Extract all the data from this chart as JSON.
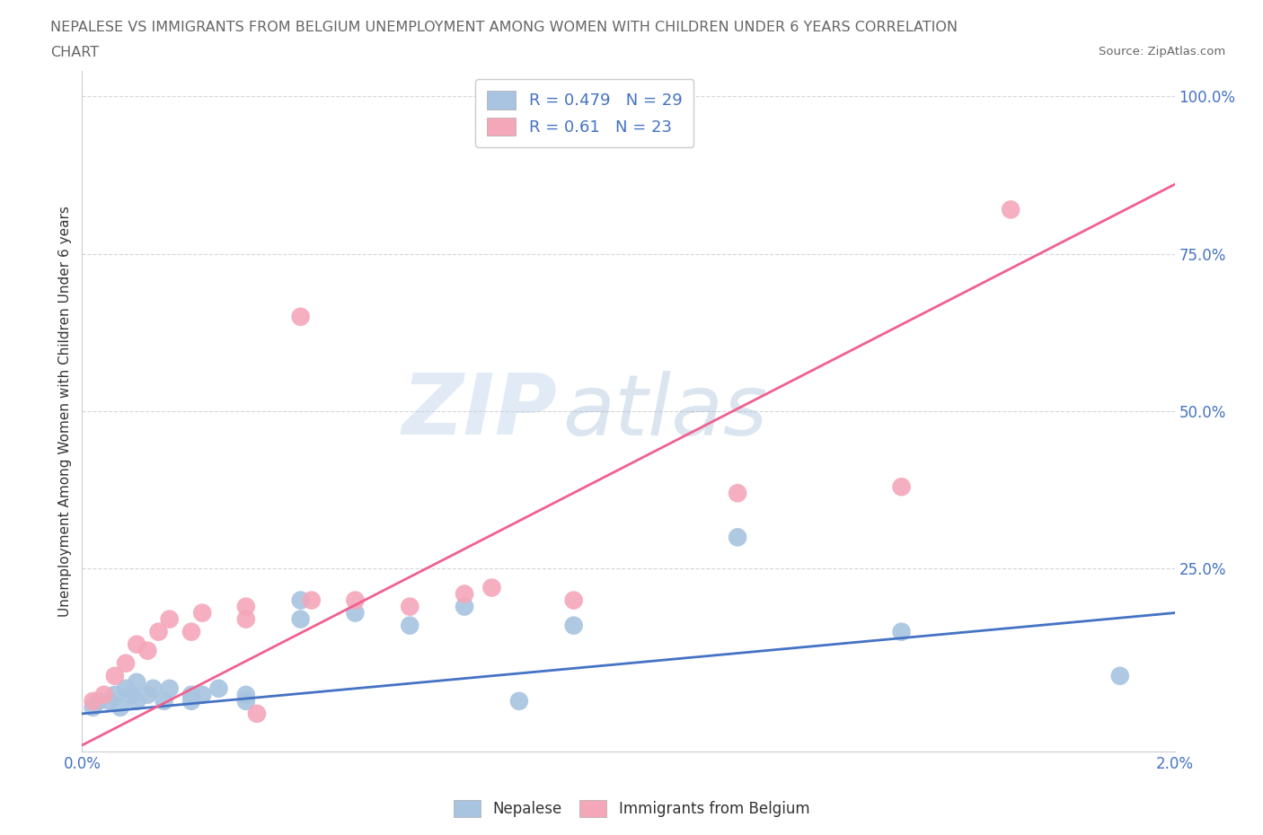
{
  "title_line1": "NEPALESE VS IMMIGRANTS FROM BELGIUM UNEMPLOYMENT AMONG WOMEN WITH CHILDREN UNDER 6 YEARS CORRELATION",
  "title_line2": "CHART",
  "source": "Source: ZipAtlas.com",
  "ylabel": "Unemployment Among Women with Children Under 6 years",
  "y_tick_labels": [
    "100.0%",
    "75.0%",
    "50.0%",
    "25.0%"
  ],
  "y_tick_values": [
    1.0,
    0.75,
    0.5,
    0.25
  ],
  "xlim": [
    0.0,
    0.02
  ],
  "ylim": [
    -0.04,
    1.04
  ],
  "nepalese_R": 0.479,
  "nepalese_N": 29,
  "belgium_R": 0.61,
  "belgium_N": 23,
  "nepalese_color": "#a8c4e0",
  "belgium_color": "#f4a7b9",
  "nepalese_line_color": "#4472c4",
  "belgium_line_color": "#f06090",
  "nepalese_x": [
    0.0002,
    0.0003,
    0.0005,
    0.0006,
    0.0007,
    0.0008,
    0.0009,
    0.001,
    0.001,
    0.0012,
    0.0013,
    0.0015,
    0.0016,
    0.002,
    0.002,
    0.0022,
    0.0025,
    0.003,
    0.003,
    0.004,
    0.004,
    0.005,
    0.006,
    0.007,
    0.008,
    0.009,
    0.012,
    0.015,
    0.019
  ],
  "nepalese_y": [
    0.03,
    0.04,
    0.04,
    0.05,
    0.03,
    0.06,
    0.05,
    0.04,
    0.07,
    0.05,
    0.06,
    0.04,
    0.06,
    0.04,
    0.05,
    0.05,
    0.06,
    0.05,
    0.04,
    0.2,
    0.17,
    0.18,
    0.16,
    0.19,
    0.04,
    0.16,
    0.3,
    0.15,
    0.08
  ],
  "belgium_x": [
    0.0002,
    0.0004,
    0.0006,
    0.0008,
    0.001,
    0.0012,
    0.0014,
    0.0016,
    0.002,
    0.0022,
    0.003,
    0.003,
    0.0032,
    0.004,
    0.0042,
    0.005,
    0.006,
    0.007,
    0.0075,
    0.009,
    0.012,
    0.015,
    0.017
  ],
  "belgium_y": [
    0.04,
    0.05,
    0.08,
    0.1,
    0.13,
    0.12,
    0.15,
    0.17,
    0.15,
    0.18,
    0.17,
    0.19,
    0.02,
    0.65,
    0.2,
    0.2,
    0.19,
    0.21,
    0.22,
    0.2,
    0.37,
    0.38,
    0.82
  ],
  "watermark_zip": "ZIP",
  "watermark_atlas": "atlas",
  "legend_label_1": "Nepalese",
  "legend_label_2": "Immigrants from Belgium",
  "background_color": "#ffffff",
  "grid_color": "#cccccc",
  "title_color": "#666666",
  "axis_label_color": "#4472c4",
  "text_color": "#333333"
}
